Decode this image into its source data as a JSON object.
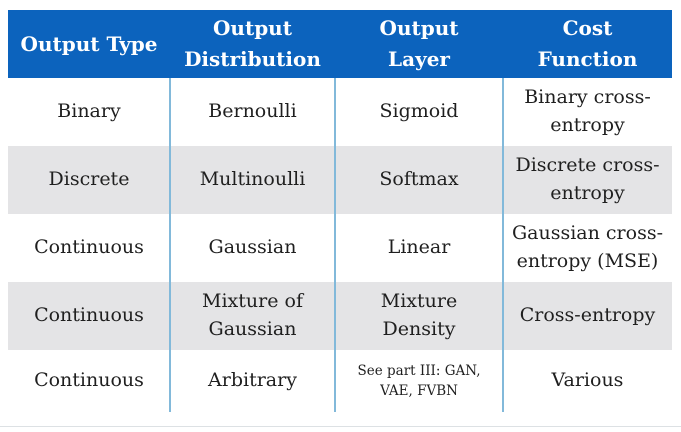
{
  "colors": {
    "header_bg": "#0c63bd",
    "header_text": "#ffffff",
    "alt_row_bg": "#e4e4e6",
    "column_divider": "#82b9da",
    "body_text": "#1f1f1f"
  },
  "table_display": {
    "headers": [
      "Output Type",
      "Output\nDistribution",
      "Output\nLayer",
      "Cost\nFunction"
    ],
    "rows": [
      [
        "Binary",
        "Bernoulli",
        "Sigmoid",
        "Binary cross-\nentropy"
      ],
      [
        "Discrete",
        "Multinoulli",
        "Softmax",
        "Discrete cross-\nentropy"
      ],
      [
        "Continuous",
        "Gaussian",
        "Linear",
        "Gaussian cross-\nentropy (MSE)"
      ],
      [
        "Continuous",
        "Mixture of\nGaussian",
        "Mixture\nDensity",
        "Cross-entropy"
      ],
      [
        "Continuous",
        "Arbitrary",
        "See part III: GAN,\nVAE, FVBN",
        "Various"
      ]
    ]
  },
  "chart_data": {
    "type": "table",
    "title": "",
    "columns": [
      "Output Type",
      "Output Distribution",
      "Output Layer",
      "Cost Function"
    ],
    "rows": [
      [
        "Binary",
        "Bernoulli",
        "Sigmoid",
        "Binary cross-entropy"
      ],
      [
        "Discrete",
        "Multinoulli",
        "Softmax",
        "Discrete cross-entropy"
      ],
      [
        "Continuous",
        "Gaussian",
        "Linear",
        "Gaussian cross-entropy (MSE)"
      ],
      [
        "Continuous",
        "Mixture of Gaussian",
        "Mixture Density",
        "Cross-entropy"
      ],
      [
        "Continuous",
        "Arbitrary",
        "See part III: GAN, VAE, FVBN",
        "Various"
      ]
    ],
    "layout_hints": {
      "header_style": "blue background, white bold serif text",
      "row_striping": "white / light gray alternating starting with white",
      "column_dividers": "light blue vertical lines between body columns"
    }
  }
}
